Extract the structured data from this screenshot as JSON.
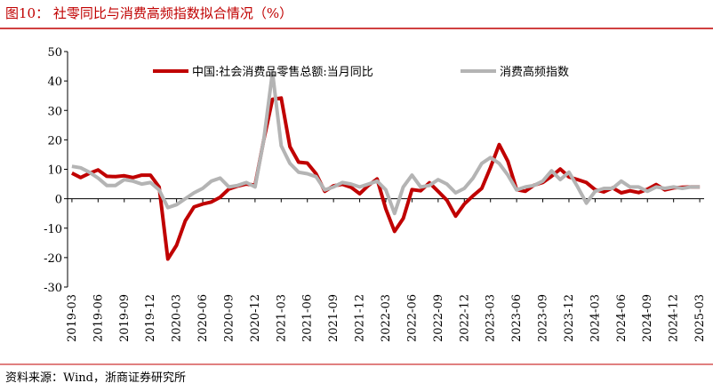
{
  "chart_data": {
    "type": "line",
    "title": "图10：  社零同比与消费高频指数拟合情况（%）",
    "source": "资料来源：Wind，浙商证券研究所",
    "categories": [
      "2019-03",
      null,
      null,
      "2019-06",
      null,
      null,
      "2019-09",
      null,
      null,
      "2019-12",
      null,
      null,
      "2020-03",
      null,
      null,
      "2020-06",
      null,
      null,
      "2020-09",
      null,
      null,
      "2020-12",
      null,
      null,
      "2021-03",
      null,
      null,
      "2021-06",
      null,
      null,
      "2021-09",
      null,
      null,
      "2021-12",
      null,
      null,
      "2022-03",
      null,
      null,
      "2022-06",
      null,
      null,
      "2022-09",
      null,
      null,
      "2022-12",
      null,
      null,
      "2023-03",
      null,
      null,
      "2023-06",
      null,
      null,
      "2023-09",
      null,
      null,
      "2023-12",
      null,
      null,
      "2024-03",
      null,
      null,
      "2024-06",
      null,
      null,
      "2024-09",
      null,
      null,
      "2024-12",
      null,
      null,
      "2025-03"
    ],
    "series": [
      {
        "name": "中国:社会消费品零售总额:当月同比",
        "color": "#c00000",
        "values": [
          8.7,
          7.2,
          8.6,
          9.8,
          7.6,
          7.5,
          7.8,
          7.2,
          8.0,
          8.0,
          4,
          -20.5,
          -15.8,
          -7.5,
          -2.8,
          -1.8,
          -1.1,
          0.5,
          3.3,
          4.3,
          5.0,
          4.6,
          20,
          33.8,
          34.2,
          17.7,
          12.4,
          12.1,
          8.5,
          2.5,
          4.4,
          4.9,
          3.9,
          1.7,
          4.5,
          6.7,
          -3.5,
          -11.1,
          -6.7,
          3.1,
          2.7,
          5.4,
          2.5,
          -0.5,
          -5.9,
          -1.8,
          1,
          3.5,
          10.6,
          18.4,
          12.7,
          3.1,
          2.5,
          4.6,
          5.5,
          7.6,
          10.1,
          7.4,
          6.5,
          5.5,
          3.1,
          2.3,
          3.7,
          2.0,
          2.7,
          2.1,
          3.2,
          4.8,
          3.0,
          3.7,
          3.9,
          4.0,
          4.0
        ]
      },
      {
        "name": "消费高频指数",
        "color": "#b4b4b4",
        "values": [
          11,
          10.5,
          9,
          7,
          4.5,
          4.5,
          6.5,
          6,
          5,
          5.5,
          3,
          -3,
          -2,
          0,
          2,
          3.5,
          6,
          7,
          4,
          4.5,
          5.5,
          4,
          20,
          43,
          18,
          12,
          9,
          8.5,
          7.5,
          3,
          4,
          5.5,
          5,
          4,
          5,
          6,
          3,
          -5,
          4,
          8,
          4,
          4.5,
          6.5,
          5,
          2,
          3.5,
          7,
          12,
          14,
          12,
          8,
          3,
          4,
          4.5,
          6,
          9.5,
          6.5,
          9,
          4,
          -1.5,
          2.5,
          3.5,
          3.5,
          6,
          4,
          4,
          2.5,
          4,
          3.5,
          4,
          3.5,
          4,
          4
        ]
      }
    ],
    "ylim": [
      -30,
      50
    ],
    "yticks": [
      -30,
      -20,
      -10,
      0,
      10,
      20,
      30,
      40,
      50
    ],
    "legend": "top",
    "grid": false
  }
}
